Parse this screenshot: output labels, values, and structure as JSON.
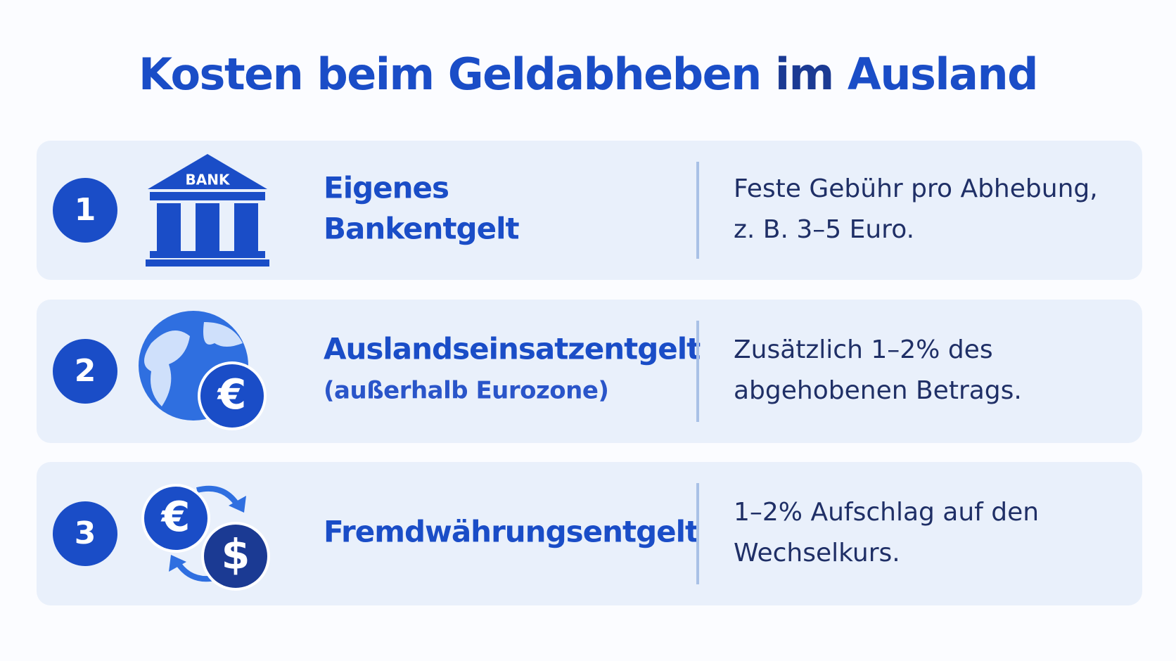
{
  "header": {
    "title_parts": [
      "Kosten beim Geldabheben",
      "im",
      "Ausland"
    ]
  },
  "items": [
    {
      "number": "1",
      "icon_labels": [
        "BANK"
      ],
      "heading_lines": [
        "Eigenes",
        "Bankentgelt"
      ],
      "description_lines": [
        "Feste Gebühr pro Abhebung,",
        "z. B. 3–5 Euro."
      ]
    },
    {
      "number": "2",
      "icon_labels": [
        "€"
      ],
      "heading_lines": [
        "Auslandseinsatzentgelt"
      ],
      "subheading": "(außerhalb Eurozone)",
      "description_lines": [
        "Zusätzlich 1–2% des",
        "abgehobenen Betrags."
      ]
    },
    {
      "number": "3",
      "icon_labels": [
        "€",
        "$"
      ],
      "heading_lines": [
        "Fremdwährungsentgelt"
      ],
      "description_lines": [
        "1–2% Aufschlag auf den",
        "Wechselkurs."
      ]
    }
  ]
}
